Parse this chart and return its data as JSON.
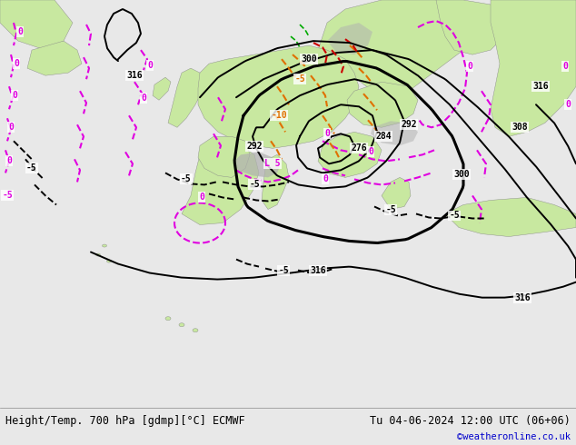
{
  "title_left": "Height/Temp. 700 hPa [gdmp][°C] ECMWF",
  "title_right": "Tu 04-06-2024 12:00 UTC (06+06)",
  "credit": "©weatheronline.co.uk",
  "bg_color": "#e8e8e8",
  "land_color": "#c8e8a0",
  "water_color": "#d8d8d8",
  "mountain_color": "#b0b0b0",
  "label_color_black": "#000000",
  "label_color_magenta": "#e000e0",
  "label_color_orange": "#e07000",
  "label_color_red": "#cc0000",
  "label_color_green": "#00aa00",
  "credit_color": "#0000cc",
  "figsize": [
    6.34,
    4.9
  ],
  "dpi": 100
}
